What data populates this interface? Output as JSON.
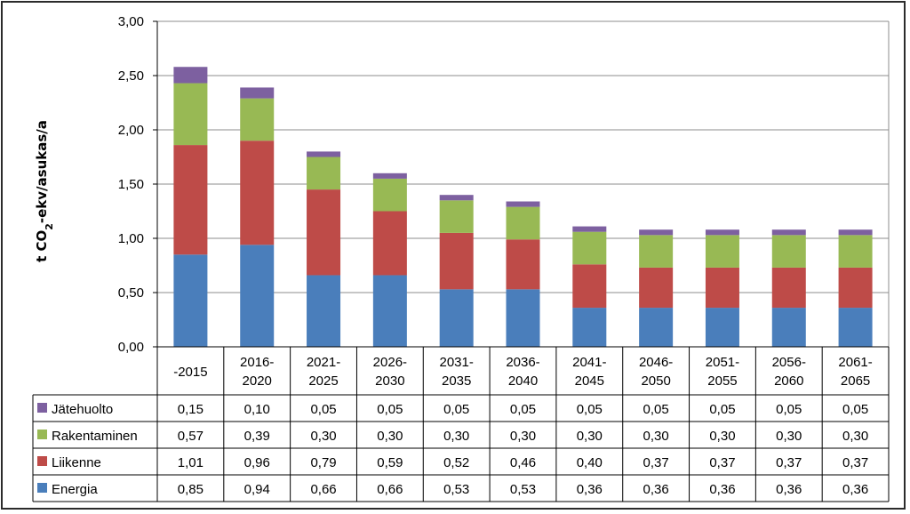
{
  "chart_data": {
    "type": "bar",
    "stacked": true,
    "ylabel": "t CO2-ekv/asukas/a",
    "ylim": [
      0,
      3.0
    ],
    "yticks": [
      "0,00",
      "0,50",
      "1,00",
      "1,50",
      "2,00",
      "2,50",
      "3,00"
    ],
    "ytick_values": [
      0,
      0.5,
      1.0,
      1.5,
      2.0,
      2.5,
      3.0
    ],
    "grid": true,
    "legend": "data-table",
    "categories": [
      [
        "-2015"
      ],
      [
        "2016-",
        "2020"
      ],
      [
        "2021-",
        "2025"
      ],
      [
        "2026-",
        "2030"
      ],
      [
        "2031-",
        "2035"
      ],
      [
        "2036-",
        "2040"
      ],
      [
        "2041-",
        "2045"
      ],
      [
        "2046-",
        "2050"
      ],
      [
        "2051-",
        "2055"
      ],
      [
        "2056-",
        "2060"
      ],
      [
        "2061-",
        "2065"
      ]
    ],
    "series": [
      {
        "name": "Energia",
        "color": "#4a7ebb",
        "values": [
          0.85,
          0.94,
          0.66,
          0.66,
          0.53,
          0.53,
          0.36,
          0.36,
          0.36,
          0.36,
          0.36
        ],
        "labels": [
          "0,85",
          "0,94",
          "0,66",
          "0,66",
          "0,53",
          "0,53",
          "0,36",
          "0,36",
          "0,36",
          "0,36",
          "0,36"
        ]
      },
      {
        "name": "Liikenne",
        "color": "#be4b48",
        "values": [
          1.01,
          0.96,
          0.79,
          0.59,
          0.52,
          0.46,
          0.4,
          0.37,
          0.37,
          0.37,
          0.37
        ],
        "labels": [
          "1,01",
          "0,96",
          "0,79",
          "0,59",
          "0,52",
          "0,46",
          "0,40",
          "0,37",
          "0,37",
          "0,37",
          "0,37"
        ]
      },
      {
        "name": "Rakentaminen",
        "color": "#98b954",
        "values": [
          0.57,
          0.39,
          0.3,
          0.3,
          0.3,
          0.3,
          0.3,
          0.3,
          0.3,
          0.3,
          0.3
        ],
        "labels": [
          "0,57",
          "0,39",
          "0,30",
          "0,30",
          "0,30",
          "0,30",
          "0,30",
          "0,30",
          "0,30",
          "0,30",
          "0,30"
        ]
      },
      {
        "name": "Jätehuolto",
        "color": "#7d60a0",
        "values": [
          0.15,
          0.1,
          0.05,
          0.05,
          0.05,
          0.05,
          0.05,
          0.05,
          0.05,
          0.05,
          0.05
        ],
        "labels": [
          "0,15",
          "0,10",
          "0,05",
          "0,05",
          "0,05",
          "0,05",
          "0,05",
          "0,05",
          "0,05",
          "0,05",
          "0,05"
        ]
      }
    ],
    "table_order": [
      "Jätehuolto",
      "Rakentaminen",
      "Liikenne",
      "Energia"
    ]
  }
}
